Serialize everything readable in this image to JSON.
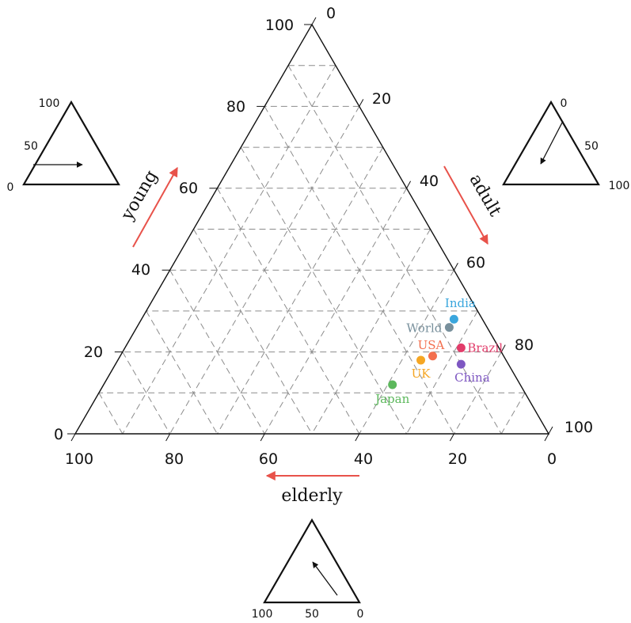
{
  "chart_data": {
    "type": "ternary-scatter",
    "title": "",
    "axes": {
      "young": {
        "label": "young",
        "ticks": [
          "0",
          "20",
          "40",
          "60",
          "80",
          "100"
        ]
      },
      "adult": {
        "label": "adult",
        "ticks": [
          "0",
          "20",
          "40",
          "60",
          "80",
          "100"
        ]
      },
      "elderly": {
        "label": "elderly",
        "ticks": [
          "100",
          "80",
          "60",
          "40",
          "20",
          "0"
        ]
      }
    },
    "range": [
      0,
      100
    ],
    "grid_step": 10,
    "grid": true,
    "arrow_color": "#e8524a",
    "points": [
      {
        "name": "India",
        "young": 28,
        "adult": 66,
        "elderly": 6,
        "color": "#3aa6dd"
      },
      {
        "name": "World",
        "young": 26,
        "adult": 66,
        "elderly": 8,
        "color": "#78909c"
      },
      {
        "name": "Brazil",
        "young": 21,
        "adult": 71,
        "elderly": 8,
        "color": "#e23c6a"
      },
      {
        "name": "USA",
        "young": 19,
        "adult": 66,
        "elderly": 15,
        "color": "#f36f4e"
      },
      {
        "name": "UK",
        "young": 18,
        "adult": 64,
        "elderly": 18,
        "color": "#f5a623"
      },
      {
        "name": "China",
        "young": 17,
        "adult": 73,
        "elderly": 10,
        "color": "#7e57c2"
      },
      {
        "name": "Japan",
        "young": 12,
        "adult": 61,
        "elderly": 27,
        "color": "#5cb85c"
      }
    ],
    "legend_triangles": {
      "young": {
        "ticks": [
          "100",
          "50",
          "0"
        ]
      },
      "adult": {
        "ticks": [
          "0",
          "50",
          "100"
        ]
      },
      "elderly": {
        "ticks": [
          "100",
          "50",
          "0"
        ]
      }
    }
  }
}
